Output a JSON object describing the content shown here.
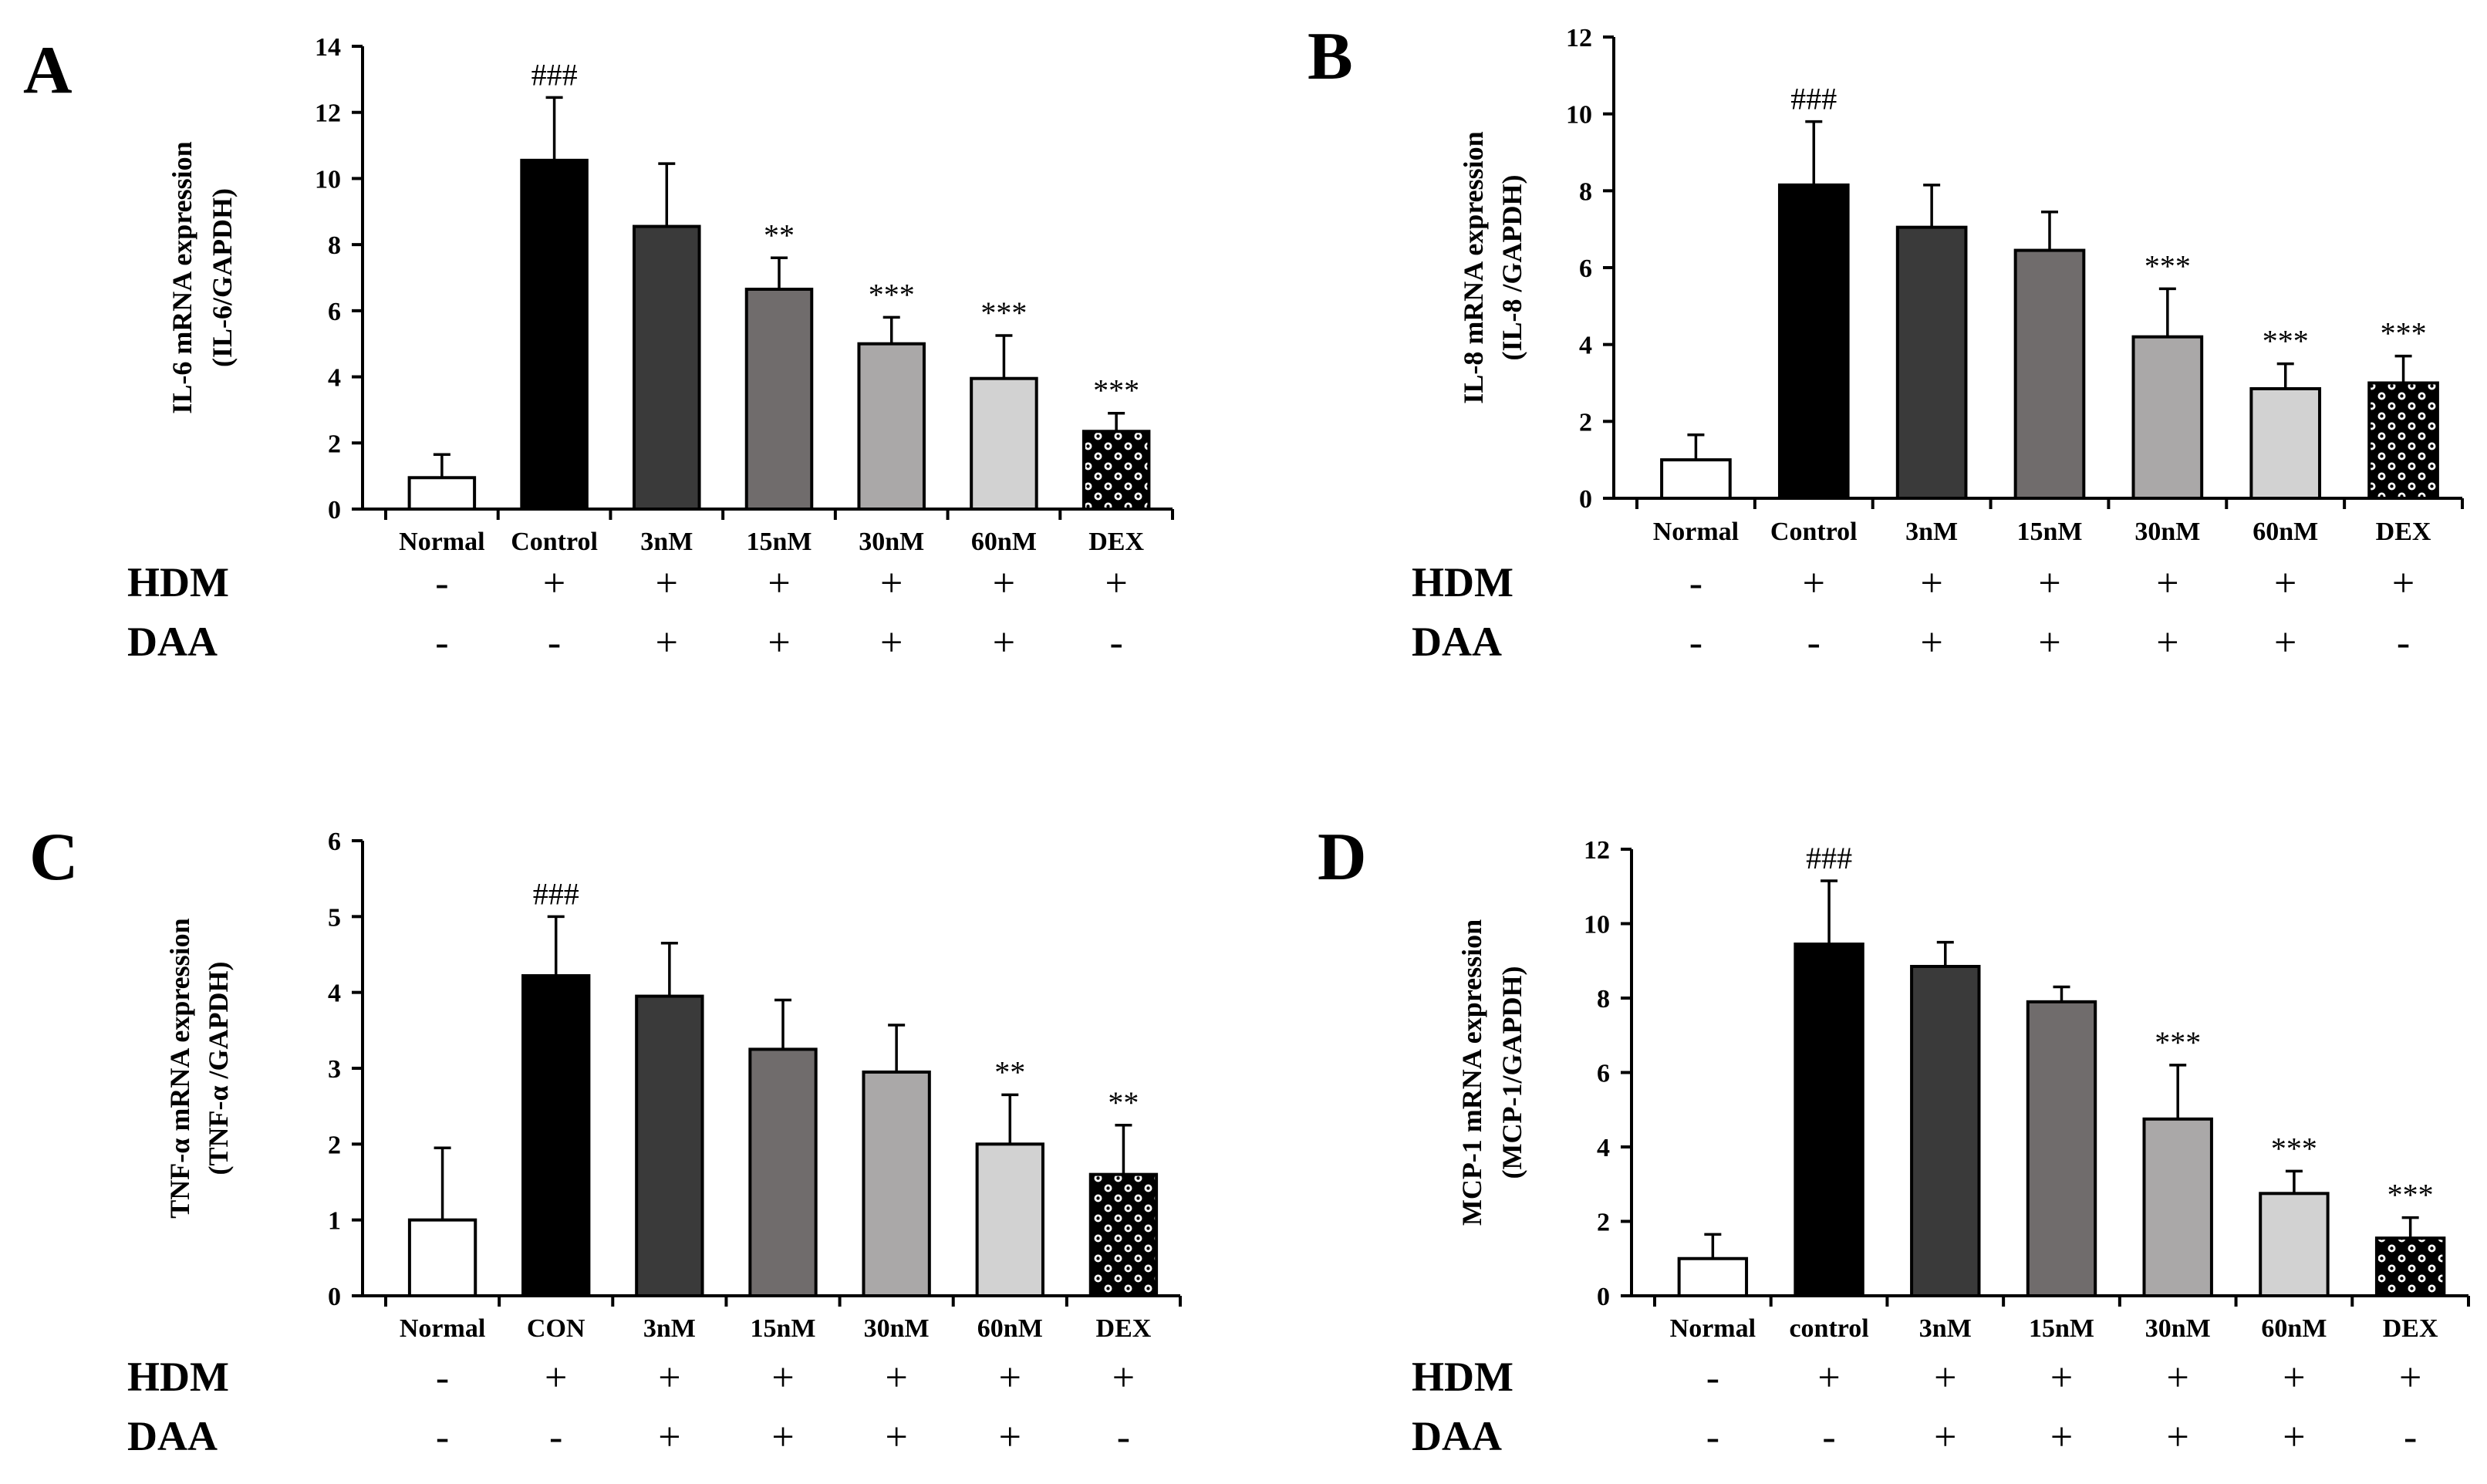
{
  "figure": {
    "condition_rows": [
      {
        "name": "HDM",
        "symbols": [
          "-",
          "+",
          "+",
          "+",
          "+",
          "+",
          "+"
        ]
      },
      {
        "name": "DAA",
        "symbols": [
          "-",
          "-",
          "+",
          "+",
          "+",
          "+",
          "-"
        ]
      }
    ]
  },
  "chart_data": [
    {
      "panel": "A",
      "type": "bar",
      "ylabel": "IL-6 mRNA expression",
      "ylabel_sub": "(IL-6/GAPDH)",
      "categories": [
        "Normal",
        "Control",
        "3nM",
        "15nM",
        "30nM",
        "60nM",
        "DEX"
      ],
      "values": [
        0.95,
        10.55,
        8.55,
        6.65,
        5.0,
        3.95,
        2.35
      ],
      "errors": [
        0.7,
        1.9,
        1.9,
        0.95,
        0.8,
        1.3,
        0.55
      ],
      "significance": [
        "",
        "###",
        "",
        "**",
        "***",
        "***",
        "***"
      ],
      "ylim": [
        0,
        14
      ],
      "yticks": [
        0,
        2,
        4,
        6,
        8,
        10,
        12,
        14
      ],
      "fills": [
        "#ffffff",
        "#000000",
        "#3a3a3a",
        "#706c6c",
        "#aaa8a8",
        "#d2d2d2",
        "pattern"
      ]
    },
    {
      "panel": "B",
      "type": "bar",
      "ylabel": "IL-8 mRNA expression",
      "ylabel_sub": "(IL-8 /GAPDH)",
      "categories": [
        "Normal",
        "Control",
        "3nM",
        "15nM",
        "30nM",
        "60nM",
        "DEX"
      ],
      "values": [
        1.0,
        8.15,
        7.05,
        6.45,
        4.2,
        2.85,
        3.0
      ],
      "errors": [
        0.65,
        1.65,
        1.1,
        1.0,
        1.25,
        0.65,
        0.7
      ],
      "significance": [
        "",
        "###",
        "",
        "",
        "***",
        "***",
        "***"
      ],
      "ylim": [
        0,
        12
      ],
      "yticks": [
        0,
        2,
        4,
        6,
        8,
        10,
        12
      ],
      "fills": [
        "#ffffff",
        "#000000",
        "#3a3a3a",
        "#706c6c",
        "#aaa8a8",
        "#d2d2d2",
        "pattern"
      ]
    },
    {
      "panel": "C",
      "type": "bar",
      "ylabel": "TNF-α  mRNA expression",
      "ylabel_sub": "(TNF-α /GAPDH)",
      "categories": [
        "Normal",
        "CON",
        "3nM",
        "15nM",
        "30nM",
        "60nM",
        "DEX"
      ],
      "values": [
        1.0,
        4.22,
        3.95,
        3.25,
        2.95,
        2.0,
        1.6
      ],
      "errors": [
        0.95,
        0.78,
        0.7,
        0.65,
        0.62,
        0.65,
        0.65
      ],
      "significance": [
        "",
        "###",
        "",
        "",
        "",
        "**",
        "**"
      ],
      "ylim": [
        0,
        6
      ],
      "yticks": [
        0,
        1,
        2,
        3,
        4,
        5,
        6
      ],
      "fills": [
        "#ffffff",
        "#000000",
        "#3a3a3a",
        "#706c6c",
        "#aaa8a8",
        "#d2d2d2",
        "pattern"
      ]
    },
    {
      "panel": "D",
      "type": "bar",
      "ylabel": "MCP-1 mRNA expression",
      "ylabel_sub": "(MCP-1/GAPDH)",
      "categories": [
        "Normal",
        "control",
        "3nM",
        "15nM",
        "30nM",
        "60nM",
        "DEX"
      ],
      "values": [
        1.0,
        9.45,
        8.85,
        7.9,
        4.75,
        2.75,
        1.55
      ],
      "errors": [
        0.65,
        1.7,
        0.65,
        0.4,
        1.45,
        0.6,
        0.55
      ],
      "significance": [
        "",
        "###",
        "",
        "",
        "***",
        "***",
        "***"
      ],
      "ylim": [
        0,
        12
      ],
      "yticks": [
        0,
        2,
        4,
        6,
        8,
        10,
        12
      ],
      "fills": [
        "#ffffff",
        "#000000",
        "#3a3a3a",
        "#706c6c",
        "#aaa8a8",
        "#d2d2d2",
        "pattern"
      ]
    }
  ]
}
